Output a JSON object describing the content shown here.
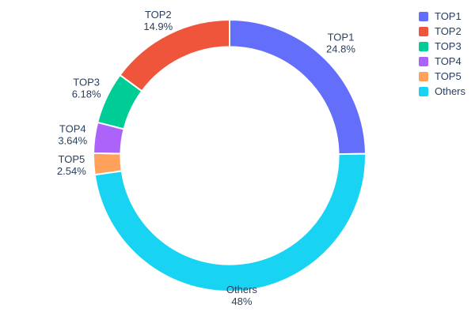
{
  "chart": {
    "background": "#ffffff",
    "text_color": "#2a3f5f"
  },
  "chart_data": {
    "type": "pie",
    "hole": 0.8,
    "labels": [
      "TOP1",
      "TOP2",
      "TOP3",
      "TOP4",
      "TOP5",
      "Others"
    ],
    "values": [
      24.8,
      14.9,
      6.18,
      3.64,
      2.54,
      48
    ],
    "percent_labels": [
      "24.8%",
      "14.9%",
      "6.18%",
      "3.64%",
      "2.54%",
      "48%"
    ],
    "colors": [
      "#636efa",
      "#ef553b",
      "#00cc96",
      "#ab63fa",
      "#ffa15a",
      "#19d3f3"
    ],
    "display_order_clockwise_from_top": [
      0,
      5,
      4,
      3,
      2,
      1
    ],
    "outside_labels": true,
    "legend": {
      "position": "right",
      "entries": [
        "TOP1",
        "TOP2",
        "TOP3",
        "TOP4",
        "TOP5",
        "Others"
      ]
    }
  }
}
